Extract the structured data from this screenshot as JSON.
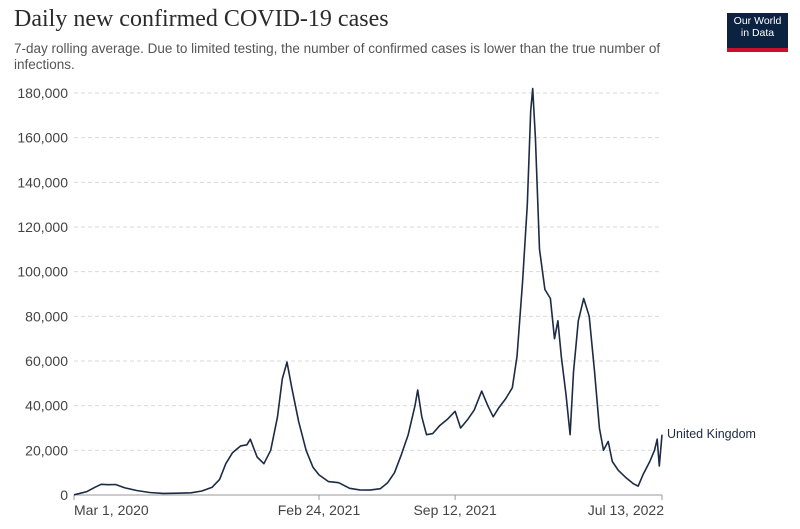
{
  "header": {
    "title": "Daily new confirmed COVID-19 cases",
    "subtitle": "7-day rolling average. Due to limited testing, the number of confirmed cases is lower than the true number of infections."
  },
  "logo": {
    "line1": "Our World",
    "line2": "in Data",
    "bg_color": "#0b2341",
    "accent_color": "#c8102e"
  },
  "chart_data": {
    "type": "line",
    "title": "Daily new confirmed COVID-19 cases",
    "subtitle": "7-day rolling average. Due to limited testing, the number of confirmed cases is lower than the true number of infections.",
    "x_ticks": [
      "Mar 1, 2020",
      "Feb 24, 2021",
      "Sep 12, 2021",
      "Jul 13, 2022"
    ],
    "y_ticks": [
      0,
      20000,
      40000,
      60000,
      80000,
      100000,
      120000,
      140000,
      160000,
      180000
    ],
    "y_tick_labels": [
      "0",
      "20,000",
      "40,000",
      "60,000",
      "80,000",
      "100,000",
      "120,000",
      "140,000",
      "160,000",
      "180,000"
    ],
    "xlim": [
      "2020-03-01",
      "2022-07-13"
    ],
    "ylim": [
      0,
      180000
    ],
    "grid": "horizontal dashed",
    "line_color": "#1d2b44",
    "series": [
      {
        "name": "United Kingdom",
        "points": [
          [
            "2020-03-01",
            100
          ],
          [
            "2020-03-20",
            1500
          ],
          [
            "2020-04-01",
            3500
          ],
          [
            "2020-04-10",
            4800
          ],
          [
            "2020-04-20",
            4600
          ],
          [
            "2020-05-01",
            4700
          ],
          [
            "2020-05-15",
            3200
          ],
          [
            "2020-06-01",
            2000
          ],
          [
            "2020-06-20",
            1100
          ],
          [
            "2020-07-10",
            700
          ],
          [
            "2020-08-01",
            800
          ],
          [
            "2020-08-20",
            1000
          ],
          [
            "2020-09-05",
            1800
          ],
          [
            "2020-09-20",
            3500
          ],
          [
            "2020-10-01",
            7000
          ],
          [
            "2020-10-10",
            14000
          ],
          [
            "2020-10-20",
            19000
          ],
          [
            "2020-11-01",
            22000
          ],
          [
            "2020-11-10",
            22500
          ],
          [
            "2020-11-15",
            25000
          ],
          [
            "2020-11-25",
            17000
          ],
          [
            "2020-12-05",
            14000
          ],
          [
            "2020-12-15",
            20000
          ],
          [
            "2020-12-25",
            35000
          ],
          [
            "2021-01-01",
            52000
          ],
          [
            "2021-01-08",
            59500
          ],
          [
            "2021-01-15",
            48000
          ],
          [
            "2021-01-25",
            33000
          ],
          [
            "2021-02-05",
            20000
          ],
          [
            "2021-02-15",
            12500
          ],
          [
            "2021-02-24",
            9000
          ],
          [
            "2021-03-10",
            6000
          ],
          [
            "2021-03-25",
            5500
          ],
          [
            "2021-04-10",
            3000
          ],
          [
            "2021-04-25",
            2300
          ],
          [
            "2021-05-10",
            2200
          ],
          [
            "2021-05-25",
            2800
          ],
          [
            "2021-06-05",
            5500
          ],
          [
            "2021-06-15",
            10000
          ],
          [
            "2021-06-25",
            18000
          ],
          [
            "2021-07-05",
            27000
          ],
          [
            "2021-07-15",
            40000
          ],
          [
            "2021-07-19",
            47000
          ],
          [
            "2021-07-25",
            35000
          ],
          [
            "2021-08-01",
            27000
          ],
          [
            "2021-08-10",
            27500
          ],
          [
            "2021-08-20",
            31000
          ],
          [
            "2021-09-01",
            34000
          ],
          [
            "2021-09-12",
            37500
          ],
          [
            "2021-09-20",
            30000
          ],
          [
            "2021-10-01",
            34000
          ],
          [
            "2021-10-10",
            38000
          ],
          [
            "2021-10-21",
            46500
          ],
          [
            "2021-10-30",
            40000
          ],
          [
            "2021-11-07",
            35000
          ],
          [
            "2021-11-15",
            39000
          ],
          [
            "2021-11-25",
            43000
          ],
          [
            "2021-12-05",
            48000
          ],
          [
            "2021-12-12",
            62000
          ],
          [
            "2021-12-20",
            95000
          ],
          [
            "2021-12-27",
            130000
          ],
          [
            "2022-01-01",
            172000
          ],
          [
            "2022-01-04",
            182000
          ],
          [
            "2022-01-08",
            160000
          ],
          [
            "2022-01-14",
            110000
          ],
          [
            "2022-01-22",
            92000
          ],
          [
            "2022-01-30",
            88000
          ],
          [
            "2022-02-05",
            70000
          ],
          [
            "2022-02-10",
            78000
          ],
          [
            "2022-02-15",
            62000
          ],
          [
            "2022-02-22",
            45000
          ],
          [
            "2022-02-28",
            27000
          ],
          [
            "2022-03-05",
            55000
          ],
          [
            "2022-03-12",
            78000
          ],
          [
            "2022-03-20",
            88000
          ],
          [
            "2022-03-28",
            80000
          ],
          [
            "2022-04-05",
            55000
          ],
          [
            "2022-04-12",
            30000
          ],
          [
            "2022-04-18",
            20000
          ],
          [
            "2022-04-25",
            24000
          ],
          [
            "2022-05-01",
            15000
          ],
          [
            "2022-05-10",
            11000
          ],
          [
            "2022-05-20",
            8000
          ],
          [
            "2022-06-01",
            5000
          ],
          [
            "2022-06-08",
            4000
          ],
          [
            "2022-06-15",
            9000
          ],
          [
            "2022-06-25",
            15000
          ],
          [
            "2022-07-02",
            20000
          ],
          [
            "2022-07-06",
            25000
          ],
          [
            "2022-07-09",
            13000
          ],
          [
            "2022-07-13",
            27000
          ]
        ]
      }
    ]
  }
}
